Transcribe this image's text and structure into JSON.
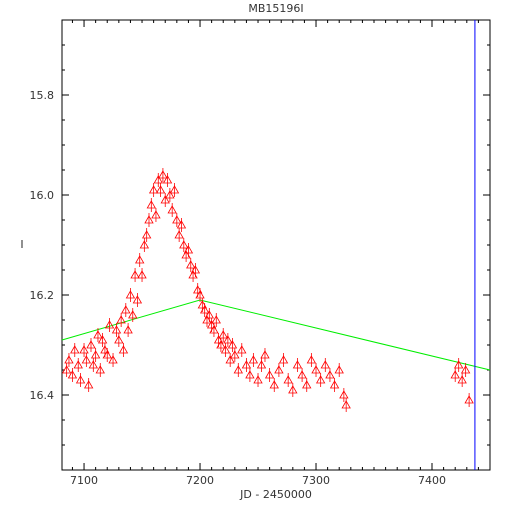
{
  "chart_data": {
    "type": "scatter",
    "title": "MB15196I",
    "xlabel": "JD - 2450000",
    "ylabel": "I",
    "xlim": [
      7081,
      7450
    ],
    "ylim": [
      16.55,
      15.65
    ],
    "y_inverted": true,
    "xticks": [
      7100,
      7200,
      7300,
      7400
    ],
    "yticks": [
      15.8,
      16.0,
      16.2,
      16.4
    ],
    "ytick_labels": [
      "15.8",
      "16.0",
      "16.2",
      "16.4"
    ],
    "grid": false,
    "series": [
      {
        "marker": "triangle",
        "color": "#ff0000",
        "x": [
          7085,
          7087,
          7090,
          7092,
          7095,
          7097,
          7100,
          7102,
          7104,
          7106,
          7108,
          7110,
          7112,
          7114,
          7116,
          7118,
          7120,
          7122,
          7125,
          7128,
          7130,
          7132,
          7134,
          7136,
          7138,
          7140,
          7142,
          7144,
          7146,
          7148,
          7150,
          7152,
          7154,
          7156,
          7158,
          7160,
          7162,
          7164,
          7166,
          7168,
          7170,
          7172,
          7174,
          7176,
          7178,
          7180,
          7182,
          7184,
          7186,
          7188,
          7190,
          7192,
          7194,
          7196,
          7198,
          7200,
          7202,
          7204,
          7206,
          7208,
          7210,
          7212,
          7214,
          7216,
          7218,
          7220,
          7222,
          7224,
          7226,
          7228,
          7230,
          7233,
          7236,
          7240,
          7243,
          7246,
          7250,
          7253,
          7256,
          7260,
          7264,
          7268,
          7272,
          7276,
          7280,
          7284,
          7288,
          7292,
          7296,
          7300,
          7304,
          7308,
          7312,
          7316,
          7320,
          7324,
          7326,
          7420,
          7423,
          7426,
          7429,
          7432
        ],
        "y": [
          16.35,
          16.33,
          16.36,
          16.31,
          16.34,
          16.37,
          16.31,
          16.33,
          16.38,
          16.3,
          16.34,
          16.32,
          16.28,
          16.35,
          16.29,
          16.31,
          16.32,
          16.26,
          16.33,
          16.27,
          16.29,
          16.25,
          16.31,
          16.23,
          16.27,
          16.2,
          16.24,
          16.16,
          16.21,
          16.13,
          16.16,
          16.1,
          16.08,
          16.05,
          16.02,
          15.99,
          16.04,
          15.97,
          15.99,
          15.96,
          16.01,
          15.97,
          16.0,
          16.03,
          15.99,
          16.05,
          16.08,
          16.06,
          16.1,
          16.12,
          16.11,
          16.14,
          16.16,
          16.15,
          16.19,
          16.2,
          16.22,
          16.23,
          16.25,
          16.24,
          16.26,
          16.27,
          16.25,
          16.29,
          16.3,
          16.28,
          16.31,
          16.29,
          16.33,
          16.3,
          16.32,
          16.35,
          16.31,
          16.34,
          16.36,
          16.33,
          16.37,
          16.34,
          16.32,
          16.36,
          16.38,
          16.35,
          16.33,
          16.37,
          16.39,
          16.34,
          16.36,
          16.38,
          16.33,
          16.35,
          16.37,
          16.34,
          16.36,
          16.38,
          16.35,
          16.4,
          16.42,
          16.36,
          16.34,
          16.37,
          16.35,
          16.41
        ]
      },
      {
        "marker": "line",
        "color": "#00ee00",
        "x": [
          7081,
          7200,
          7450
        ],
        "y": [
          16.29,
          16.21,
          16.35
        ]
      }
    ],
    "vertical_line": {
      "x": 7437,
      "color": "#0000ff"
    }
  }
}
